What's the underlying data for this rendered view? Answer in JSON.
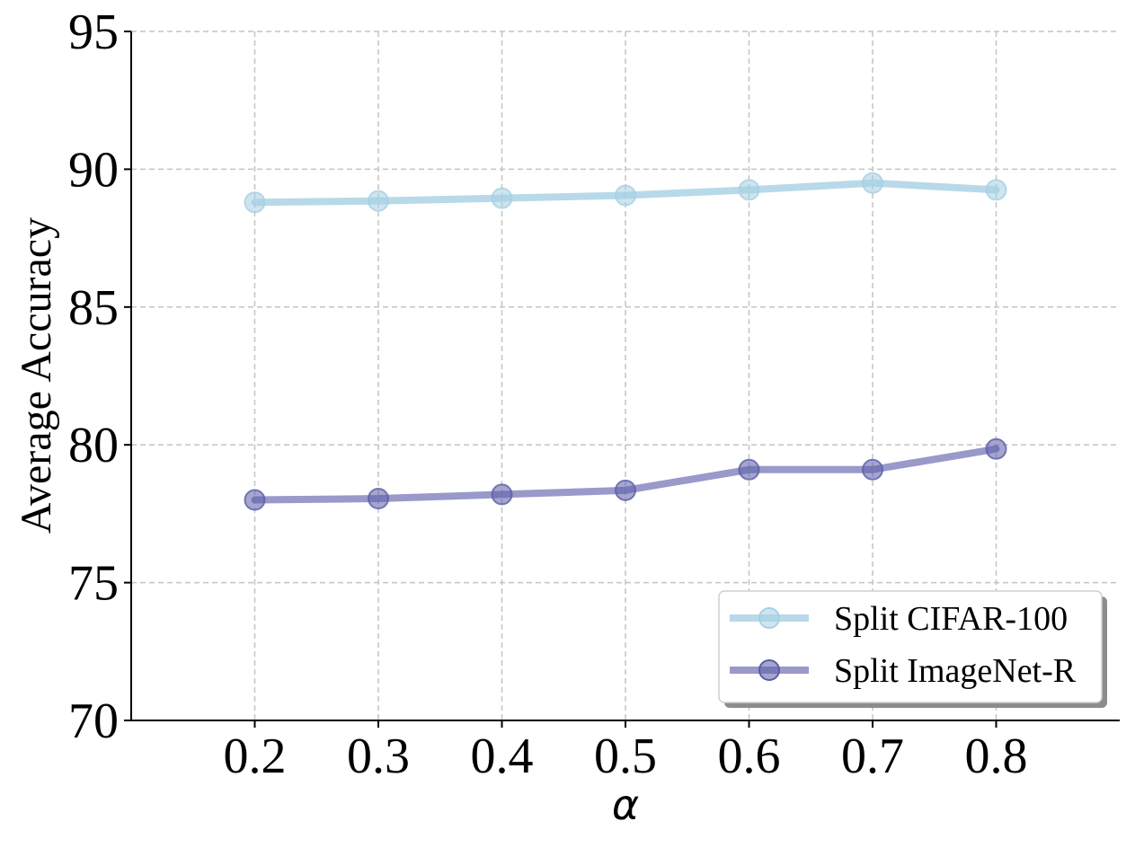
{
  "chart_data": {
    "type": "line",
    "title": "",
    "xlabel": "α",
    "ylabel": "Average Accuracy",
    "x": [
      0.2,
      0.3,
      0.4,
      0.5,
      0.6,
      0.7,
      0.8
    ],
    "x_tick_labels": [
      "0.2",
      "0.3",
      "0.4",
      "0.5",
      "0.6",
      "0.7",
      "0.8"
    ],
    "xlim": [
      0.1,
      0.9
    ],
    "ylim": [
      70,
      95
    ],
    "y_ticks": [
      70,
      75,
      80,
      85,
      90,
      95
    ],
    "y_tick_labels": [
      "70",
      "75",
      "80",
      "85",
      "90",
      "95"
    ],
    "grid": true,
    "legend_position": "lower-right",
    "series": [
      {
        "name": "Split CIFAR-100",
        "color": "#a6cfe4",
        "values": [
          88.8,
          88.85,
          88.95,
          89.05,
          89.25,
          89.5,
          89.25
        ]
      },
      {
        "name": "Split ImageNet-R",
        "color": "#7f80bd",
        "marker_color": "#5b5ca8",
        "values": [
          78.0,
          78.05,
          78.2,
          78.35,
          79.1,
          79.1,
          79.85
        ]
      }
    ]
  }
}
